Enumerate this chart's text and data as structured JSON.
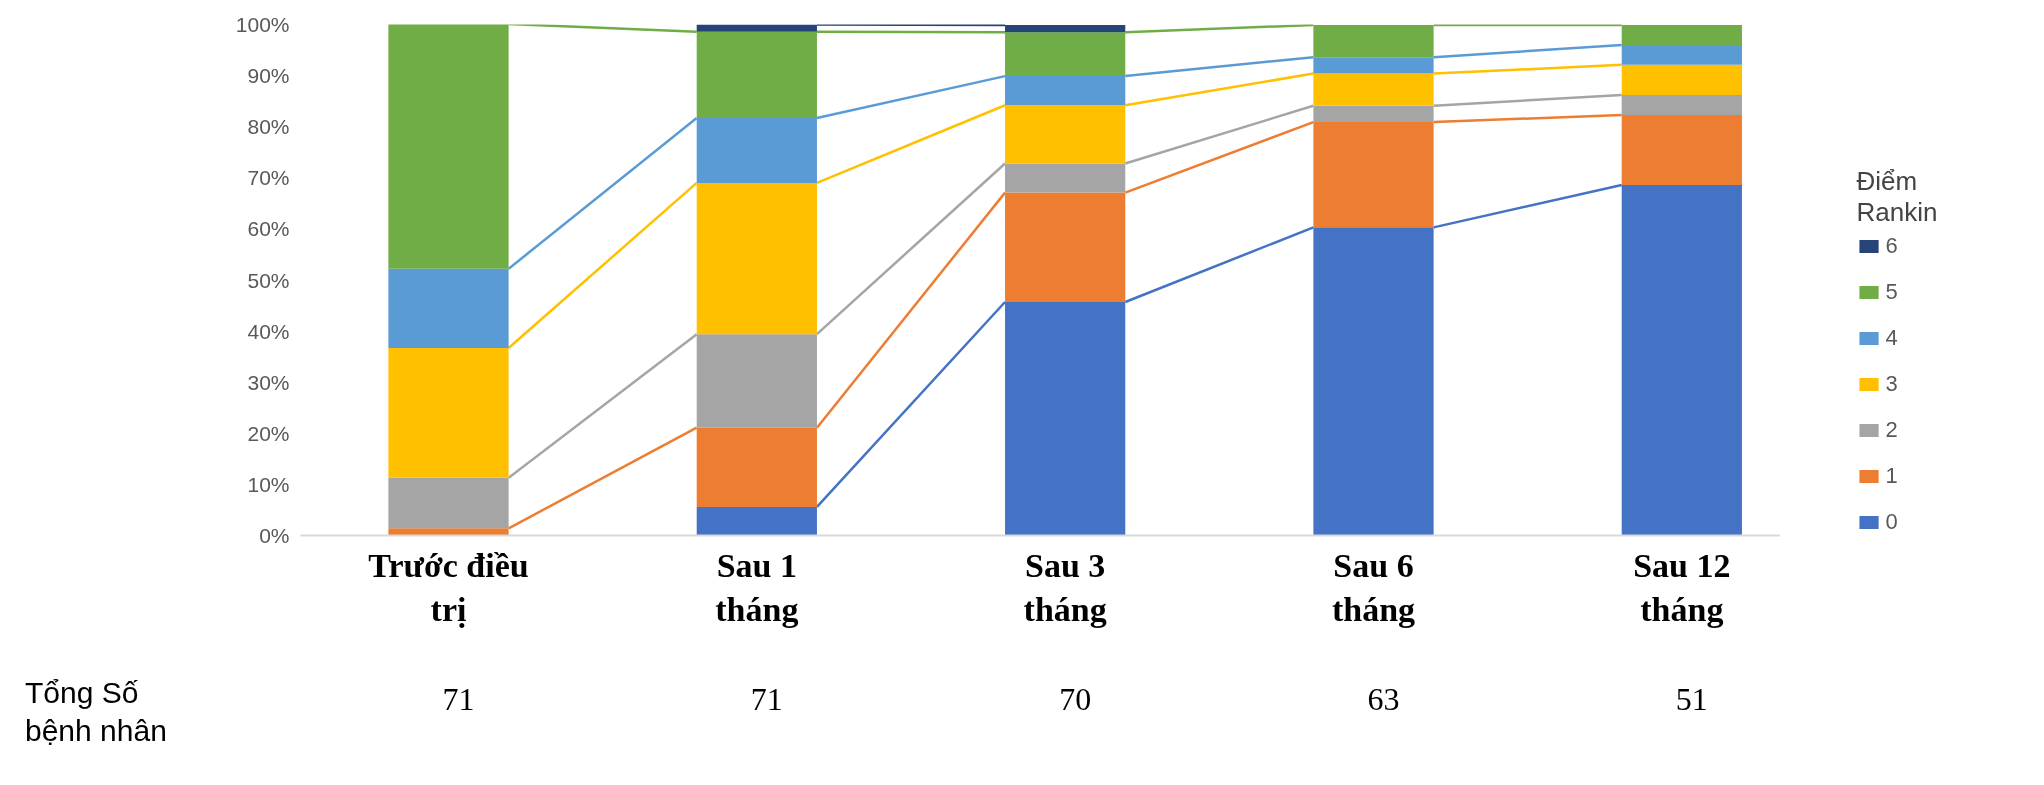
{
  "chart_data": {
    "type": "bar",
    "stacked": true,
    "categories": [
      "Trước điều trị",
      "Sau 1 tháng",
      "Sau 3 tháng",
      "Sau 6 tháng",
      "Sau 12 tháng"
    ],
    "series": [
      {
        "name": "0",
        "color": "#4472c4",
        "values": [
          0,
          5.6,
          45.7,
          60.3,
          68.6
        ]
      },
      {
        "name": "1",
        "color": "#ed7d31",
        "values": [
          1.4,
          15.5,
          21.4,
          20.6,
          13.7
        ]
      },
      {
        "name": "2",
        "color": "#a5a5a5",
        "values": [
          9.9,
          18.3,
          5.7,
          3.2,
          3.9
        ]
      },
      {
        "name": "3",
        "color": "#ffc000",
        "values": [
          25.4,
          29.6,
          11.4,
          6.3,
          5.9
        ]
      },
      {
        "name": "4",
        "color": "#5b9bd5",
        "values": [
          15.5,
          12.7,
          5.7,
          3.2,
          3.9
        ]
      },
      {
        "name": "5",
        "color": "#70ad47",
        "values": [
          47.9,
          16.9,
          8.6,
          6.3,
          3.9
        ]
      },
      {
        "name": "6",
        "color": "#264478",
        "values": [
          0,
          1.4,
          1.4,
          0,
          0
        ]
      }
    ],
    "ylim": [
      0,
      100
    ],
    "yticks": [
      {
        "value": 0,
        "label": "0%"
      },
      {
        "value": 10,
        "label": "10%"
      },
      {
        "value": 20,
        "label": "20%"
      },
      {
        "value": 30,
        "label": "30%"
      },
      {
        "value": 40,
        "label": "40%"
      },
      {
        "value": 50,
        "label": "50%"
      },
      {
        "value": 60,
        "label": "60%"
      },
      {
        "value": 70,
        "label": "70%"
      },
      {
        "value": 80,
        "label": "80%"
      },
      {
        "value": 90,
        "label": "90%"
      },
      {
        "value": 100,
        "label": "100%"
      }
    ],
    "legend": "right",
    "legend_title": "Điểm Rankin",
    "grid": false,
    "annotations": [
      "Tổng Số bệnh nhân",
      "71",
      "71",
      "70",
      "63",
      "51"
    ]
  }
}
